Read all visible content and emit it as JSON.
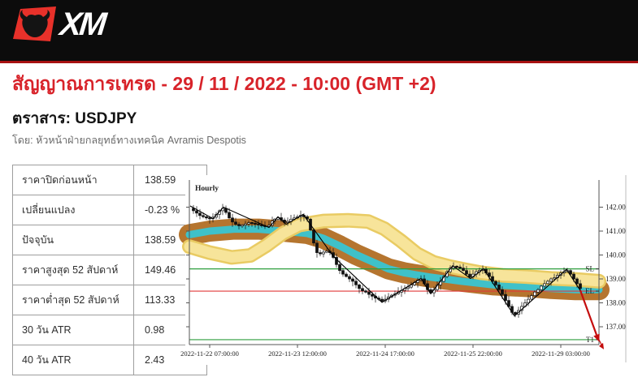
{
  "header": {
    "logo_text": "XM",
    "bar_color": "#0c0c0c",
    "accent_line_color": "#a81111",
    "bull_red": "#e8312a"
  },
  "signal": {
    "title": "สัญญาณการเทรด - 29 / 11 / 2022 - 10:00 (GMT +2)",
    "title_color": "#d8232a",
    "instrument_label": "ตราสาร: USDJPY",
    "byline": "โดย: หัวหน้าฝ่ายกลยุทธ์ทางเทคนิค Avramis Despotis"
  },
  "stats_table": {
    "rows": [
      {
        "label": "ราคาปิดก่อนหน้า",
        "value": "138.59"
      },
      {
        "label": "เปลี่ยนแปลง",
        "value": "-0.23 %"
      },
      {
        "label": "ปัจจุบัน",
        "value": "138.59"
      },
      {
        "label": "ราคาสูงสุด 52 สัปดาห์",
        "value": "149.46"
      },
      {
        "label": "ราคาต่ำสุด 52 สัปดาห์",
        "value": "113.33"
      },
      {
        "label": "30 วัน ATR",
        "value": "0.98"
      },
      {
        "label": "40 วัน ATR",
        "value": "2.43"
      }
    ]
  },
  "chart_data": {
    "type": "candlestick",
    "instrument": "USDJPY",
    "timeframe_label": "Hourly",
    "y_axis": {
      "side": "right",
      "ticks": [
        137,
        138,
        139,
        140,
        141,
        142
      ],
      "decimals": 2,
      "visible_range": [
        136.25,
        143.1
      ]
    },
    "x_axis": {
      "tick_labels": [
        "2022-11-22 07:00:00",
        "2022-11-23 12:00:00",
        "2022-11-24 17:00:00",
        "2022-11-25 22:00:00",
        "2022-11-29 03:00:00"
      ],
      "tick_x": [
        30,
        138,
        246,
        354,
        462
      ]
    },
    "levels": [
      {
        "name": "SL",
        "price": 139.42,
        "color": "#2e9e3e"
      },
      {
        "name": "EL",
        "price": 138.49,
        "color": "#e03a3a"
      },
      {
        "name": "T1",
        "price": 136.46,
        "color": "#2e9e3e"
      }
    ],
    "projection_arrow": {
      "from": [
        486,
        138.52
      ],
      "mid": [
        506,
        136.66
      ],
      "to": [
        513,
        136.19
      ],
      "color": "#c40d0d"
    },
    "swing_line": [
      [
        6,
        142.05
      ],
      [
        34,
        141.52
      ],
      [
        47,
        142.0
      ],
      [
        103,
        141.15
      ],
      [
        114,
        141.6
      ],
      [
        124,
        141.28
      ],
      [
        145,
        141.7
      ],
      [
        182,
        139.95
      ],
      [
        242,
        138.02
      ],
      [
        290,
        139.02
      ],
      [
        302,
        138.38
      ],
      [
        329,
        139.55
      ],
      [
        351,
        139.02
      ],
      [
        367,
        139.42
      ],
      [
        405,
        137.45
      ],
      [
        469,
        139.4
      ],
      [
        486,
        138.52
      ]
    ],
    "bands": {
      "river": {
        "outer_color": "#b5752f",
        "inner_color": "#3fc1c9",
        "center": [
          [
            5,
            140.85
          ],
          [
            30,
            141.0
          ],
          [
            60,
            141.08
          ],
          [
            90,
            141.08
          ],
          [
            120,
            141.0
          ],
          [
            150,
            140.9
          ],
          [
            170,
            140.7
          ],
          [
            190,
            140.38
          ],
          [
            210,
            140.02
          ],
          [
            230,
            139.72
          ],
          [
            250,
            139.42
          ],
          [
            270,
            139.25
          ],
          [
            300,
            139.08
          ],
          [
            340,
            138.9
          ],
          [
            380,
            138.75
          ],
          [
            420,
            138.68
          ],
          [
            450,
            138.6
          ],
          [
            480,
            138.55
          ],
          [
            509,
            138.55
          ]
        ]
      },
      "yellow": {
        "edge_color": "#e9cb63",
        "fill_color": "#f7e49a",
        "center": [
          [
            5,
            140.35
          ],
          [
            30,
            140.1
          ],
          [
            57,
            139.9
          ],
          [
            80,
            139.98
          ],
          [
            100,
            140.4
          ],
          [
            120,
            140.9
          ],
          [
            140,
            141.25
          ],
          [
            170,
            141.42
          ],
          [
            200,
            141.45
          ],
          [
            225,
            141.4
          ],
          [
            245,
            141.1
          ],
          [
            265,
            140.6
          ],
          [
            285,
            140.05
          ],
          [
            305,
            139.7
          ],
          [
            325,
            139.52
          ],
          [
            345,
            139.38
          ],
          [
            365,
            139.25
          ],
          [
            390,
            139.15
          ],
          [
            420,
            139.1
          ],
          [
            450,
            139.02
          ],
          [
            480,
            138.98
          ],
          [
            509,
            138.9
          ]
        ]
      }
    },
    "price_path": [
      [
        6,
        141.95
      ],
      [
        10,
        141.85
      ],
      [
        14,
        141.75
      ],
      [
        18,
        141.65
      ],
      [
        22,
        141.6
      ],
      [
        26,
        141.55
      ],
      [
        30,
        141.52
      ],
      [
        34,
        141.58
      ],
      [
        38,
        141.7
      ],
      [
        42,
        141.85
      ],
      [
        46,
        141.95
      ],
      [
        50,
        141.78
      ],
      [
        54,
        141.55
      ],
      [
        58,
        141.38
      ],
      [
        62,
        141.28
      ],
      [
        66,
        141.22
      ],
      [
        70,
        141.25
      ],
      [
        74,
        141.3
      ],
      [
        78,
        141.35
      ],
      [
        82,
        141.32
      ],
      [
        86,
        141.3
      ],
      [
        90,
        141.26
      ],
      [
        94,
        141.22
      ],
      [
        98,
        141.2
      ],
      [
        103,
        141.24
      ],
      [
        107,
        141.42
      ],
      [
        110,
        141.5
      ],
      [
        114,
        141.56
      ],
      [
        118,
        141.46
      ],
      [
        122,
        141.36
      ],
      [
        126,
        141.4
      ],
      [
        130,
        141.5
      ],
      [
        134,
        141.55
      ],
      [
        138,
        141.6
      ],
      [
        142,
        141.66
      ],
      [
        146,
        141.6
      ],
      [
        150,
        141.5
      ],
      [
        154,
        141.05
      ],
      [
        158,
        140.5
      ],
      [
        162,
        140.1
      ],
      [
        166,
        140.05
      ],
      [
        170,
        140.12
      ],
      [
        174,
        140.16
      ],
      [
        178,
        140.1
      ],
      [
        182,
        139.9
      ],
      [
        186,
        139.6
      ],
      [
        190,
        139.35
      ],
      [
        194,
        139.2
      ],
      [
        198,
        139.1
      ],
      [
        202,
        139.0
      ],
      [
        206,
        138.9
      ],
      [
        210,
        138.75
      ],
      [
        214,
        138.6
      ],
      [
        218,
        138.5
      ],
      [
        222,
        138.45
      ],
      [
        226,
        138.35
      ],
      [
        230,
        138.28
      ],
      [
        234,
        138.2
      ],
      [
        238,
        138.15
      ],
      [
        242,
        138.08
      ],
      [
        246,
        138.15
      ],
      [
        250,
        138.25
      ],
      [
        254,
        138.32
      ],
      [
        258,
        138.38
      ],
      [
        262,
        138.45
      ],
      [
        266,
        138.52
      ],
      [
        270,
        138.6
      ],
      [
        274,
        138.66
      ],
      [
        278,
        138.75
      ],
      [
        282,
        138.85
      ],
      [
        286,
        138.95
      ],
      [
        290,
        139.0
      ],
      [
        294,
        138.8
      ],
      [
        298,
        138.55
      ],
      [
        302,
        138.42
      ],
      [
        306,
        138.55
      ],
      [
        310,
        138.75
      ],
      [
        314,
        138.9
      ],
      [
        318,
        139.1
      ],
      [
        322,
        139.3
      ],
      [
        326,
        139.45
      ],
      [
        330,
        139.52
      ],
      [
        334,
        139.5
      ],
      [
        338,
        139.45
      ],
      [
        342,
        139.35
      ],
      [
        346,
        139.2
      ],
      [
        350,
        139.08
      ],
      [
        354,
        139.2
      ],
      [
        358,
        139.3
      ],
      [
        362,
        139.36
      ],
      [
        366,
        139.4
      ],
      [
        370,
        139.25
      ],
      [
        374,
        139.1
      ],
      [
        378,
        138.9
      ],
      [
        382,
        138.75
      ],
      [
        386,
        138.55
      ],
      [
        390,
        138.35
      ],
      [
        394,
        138.1
      ],
      [
        398,
        137.85
      ],
      [
        402,
        137.6
      ],
      [
        406,
        137.52
      ],
      [
        410,
        137.68
      ],
      [
        414,
        137.85
      ],
      [
        418,
        138.0
      ],
      [
        422,
        138.15
      ],
      [
        426,
        138.3
      ],
      [
        430,
        138.45
      ],
      [
        434,
        138.55
      ],
      [
        438,
        138.7
      ],
      [
        442,
        138.8
      ],
      [
        446,
        138.9
      ],
      [
        450,
        139.0
      ],
      [
        454,
        139.05
      ],
      [
        458,
        139.15
      ],
      [
        462,
        139.25
      ],
      [
        466,
        139.3
      ],
      [
        470,
        139.35
      ],
      [
        474,
        139.2
      ],
      [
        478,
        139.0
      ],
      [
        482,
        138.8
      ],
      [
        486,
        138.6
      ]
    ],
    "last_price": 138.59
  }
}
